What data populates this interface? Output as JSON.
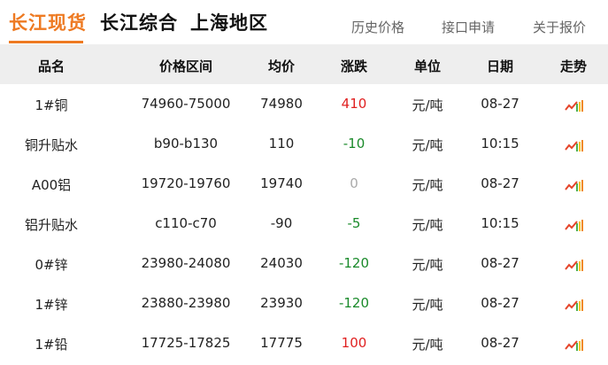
{
  "tabs": [
    {
      "label": "长江现货",
      "active": true
    },
    {
      "label": "长江综合"
    },
    {
      "label": "上海地区"
    }
  ],
  "links": [
    "历史价格",
    "接口申请",
    "关于报价"
  ],
  "columns": [
    "品名",
    "价格区间",
    "均价",
    "涨跌",
    "单位",
    "日期",
    "走势"
  ],
  "colors": {
    "accent": "#ee7a22",
    "up": "#e02020",
    "down": "#1a8a2a",
    "flat": "#aaaaaa"
  },
  "rows": [
    {
      "name": "1#铜",
      "range": "74960-75000",
      "avg": "74980",
      "change": "410",
      "dir": "up",
      "unit": "元/吨",
      "date": "08-27",
      "trend": "trend-chart-icon"
    },
    {
      "name": "铜升贴水",
      "range": "b90-b130",
      "avg": "110",
      "change": "-10",
      "dir": "down",
      "unit": "元/吨",
      "date": "10:15",
      "trend": "trend-chart-icon"
    },
    {
      "name": "A00铝",
      "range": "19720-19760",
      "avg": "19740",
      "change": "0",
      "dir": "flat",
      "unit": "元/吨",
      "date": "08-27",
      "trend": "trend-chart-icon"
    },
    {
      "name": "铝升贴水",
      "range": "c110-c70",
      "avg": "-90",
      "change": "-5",
      "dir": "down",
      "unit": "元/吨",
      "date": "10:15",
      "trend": "trend-chart-icon"
    },
    {
      "name": "0#锌",
      "range": "23980-24080",
      "avg": "24030",
      "change": "-120",
      "dir": "down",
      "unit": "元/吨",
      "date": "08-27",
      "trend": "trend-chart-icon"
    },
    {
      "name": "1#锌",
      "range": "23880-23980",
      "avg": "23930",
      "change": "-120",
      "dir": "down",
      "unit": "元/吨",
      "date": "08-27",
      "trend": "trend-chart-icon"
    },
    {
      "name": "1#铅",
      "range": "17725-17825",
      "avg": "17775",
      "change": "100",
      "dir": "up",
      "unit": "元/吨",
      "date": "08-27",
      "trend": "trend-chart-icon"
    }
  ]
}
